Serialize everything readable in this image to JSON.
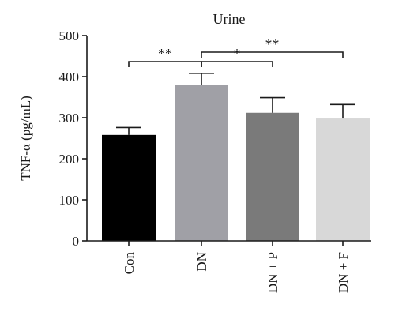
{
  "chart_data": {
    "type": "bar",
    "title": "Urine",
    "xlabel": "",
    "ylabel": "TNF-α (pg/mL)",
    "ylim": [
      0,
      500
    ],
    "yticks": [
      "0",
      "100",
      "200",
      "300",
      "400",
      "500"
    ],
    "categories": [
      "Con",
      "DN",
      "DN + P",
      "DN + F"
    ],
    "values": [
      258,
      380,
      312,
      298
    ],
    "errors": [
      18,
      28,
      37,
      34
    ],
    "colors": [
      "#000000",
      "#a0a0a6",
      "#7a7a7a",
      "#d8d8d8"
    ],
    "grid": false,
    "significance": [
      {
        "from": 0,
        "to": 1,
        "label": "**"
      },
      {
        "from": 1,
        "to": 2,
        "label": "*"
      },
      {
        "from": 1,
        "to": 3,
        "label": "**"
      }
    ]
  }
}
